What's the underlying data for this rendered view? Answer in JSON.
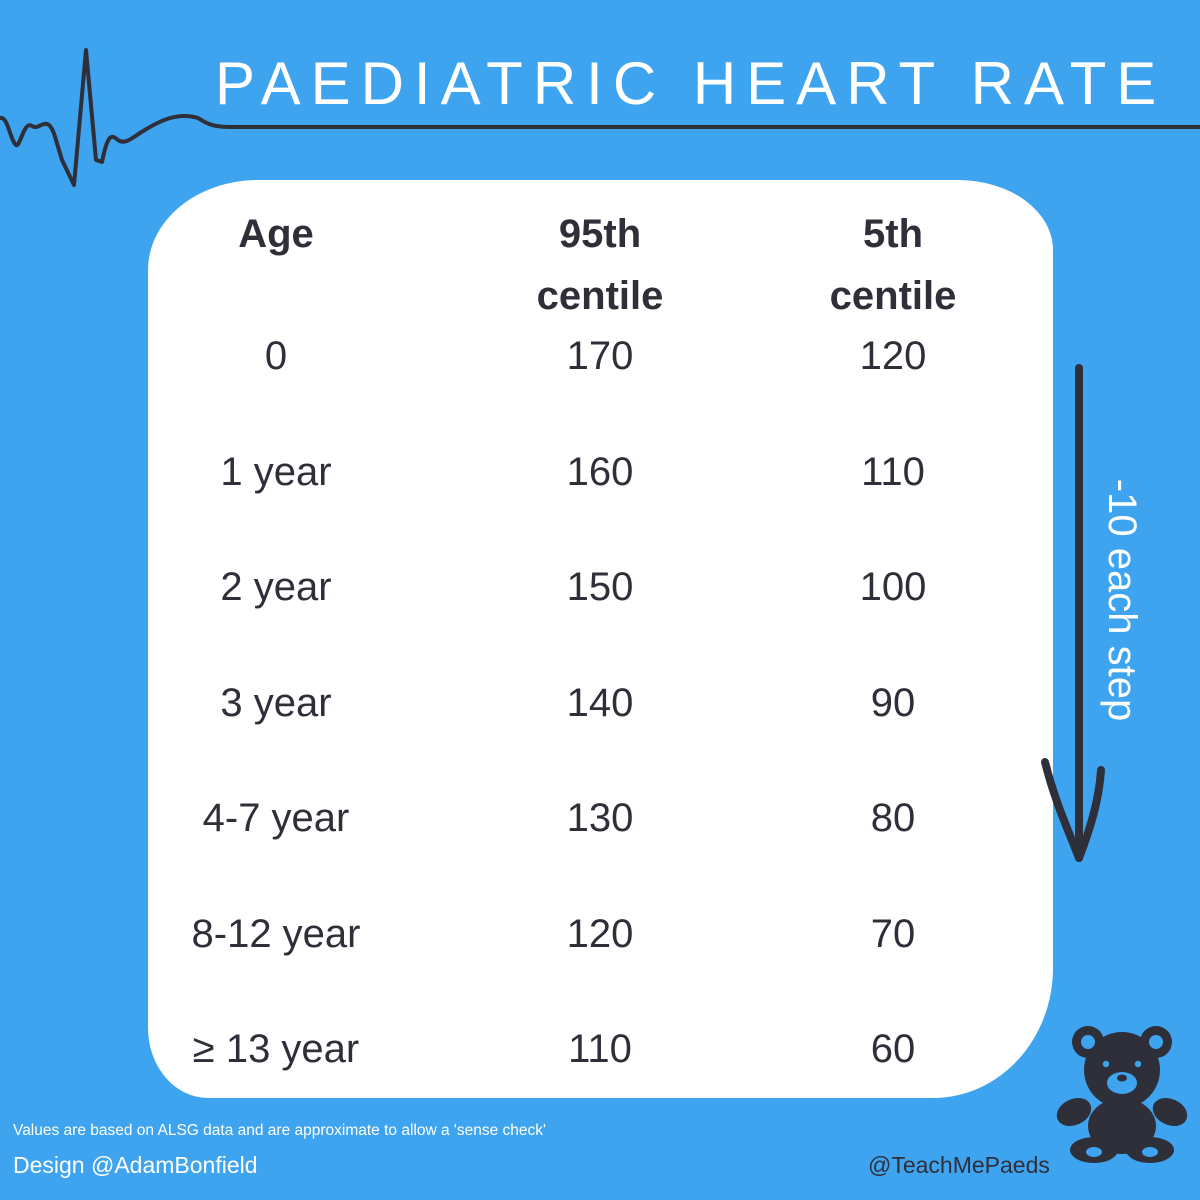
{
  "title": "PAEDIATRIC HEART RATE",
  "table": {
    "headers": [
      "Age",
      "95th\ncentile",
      "5th\ncentile"
    ],
    "rows": [
      {
        "age": "0",
        "p95": "170",
        "p5": "120"
      },
      {
        "age": "1 year",
        "p95": "160",
        "p5": "110"
      },
      {
        "age": "2 year",
        "p95": "150",
        "p5": "100"
      },
      {
        "age": "3 year",
        "p95": "140",
        "p5": "90"
      },
      {
        "age": "4-7 year",
        "p95": "130",
        "p5": "80"
      },
      {
        "age": "8-12 year",
        "p95": "120",
        "p5": "70"
      },
      {
        "age": "≥ 13 year",
        "p95": "110",
        "p5": "60"
      }
    ]
  },
  "step_note": "-10 each step",
  "footnote": "Values are based on ALSG data and are approximate to allow a 'sense check'",
  "design_credit": "Design @AdamBonfield",
  "handle": "@TeachMePaeds",
  "icons": [
    "ecg-line-icon",
    "down-arrow-icon",
    "teddy-bear-icon"
  ],
  "colors": {
    "background": "#3fa4f0",
    "card": "#ffffff",
    "text_dark": "#2f2f3a",
    "text_light": "#ffffff"
  }
}
